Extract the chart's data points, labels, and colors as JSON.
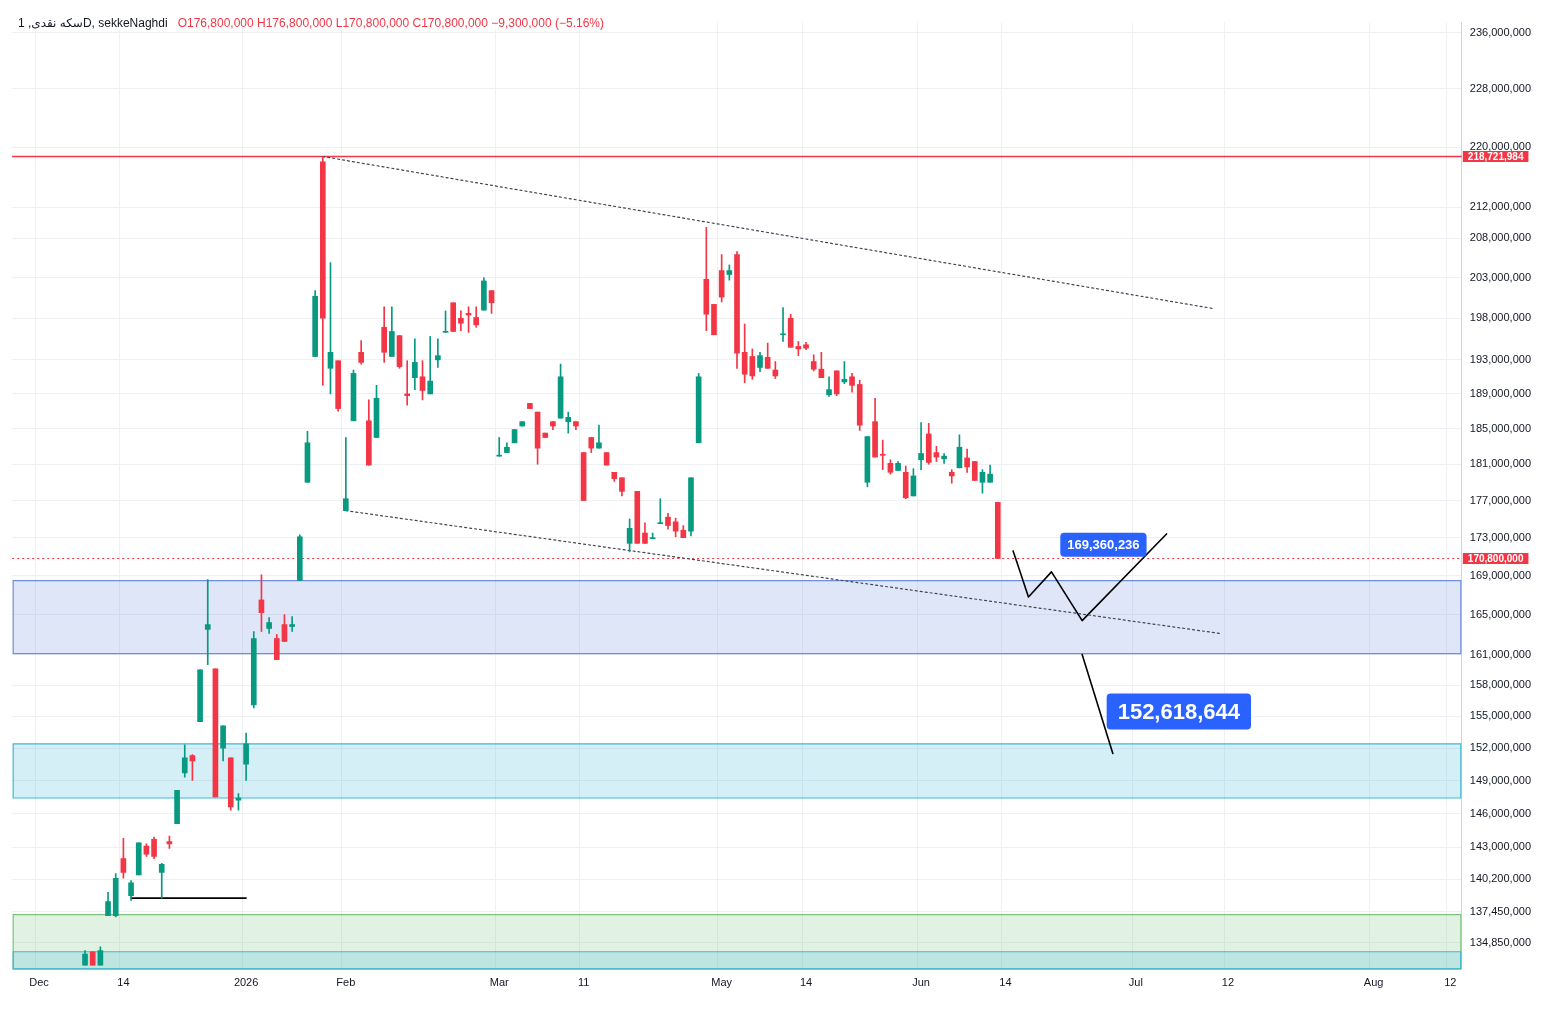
{
  "chart_data": {
    "type": "candlestick",
    "title": "سکه نقدی, 1D, sekkeNaghdi",
    "annotations": [
      "O176,800,000 H176,800,000 L170,800,000 C170,800,000 −9,300,000 (−5.16%)",
      "169,360,236",
      {
        "text": "152,618,644",
        "y": 152618644
      }
    ],
    "categories": [
      null,
      null,
      null,
      "Dec",
      null,
      null,
      null,
      null,
      null,
      null,
      null,
      null,
      null,
      null,
      "14",
      null,
      null,
      null,
      null,
      null,
      null,
      null,
      null,
      null,
      null,
      null,
      null,
      null,
      null,
      null,
      "2026",
      null,
      null,
      null,
      null,
      null,
      null,
      null,
      null,
      null,
      null,
      null,
      null,
      "Feb",
      null,
      null,
      null,
      null,
      null,
      null,
      null,
      null,
      null,
      null,
      null,
      null,
      null,
      null,
      null,
      null,
      null,
      null,
      null,
      "Mar",
      null,
      null,
      null,
      null,
      null,
      null,
      null,
      null,
      null,
      null,
      "11",
      null,
      null,
      null,
      null,
      null,
      null,
      null,
      null,
      null,
      null,
      null,
      null,
      null,
      null,
      null,
      null,
      null,
      "May",
      null,
      null,
      null,
      null,
      null,
      null,
      null,
      null,
      null,
      null,
      "14",
      null,
      null,
      null,
      null,
      null,
      null,
      null,
      null,
      null,
      null,
      null,
      null,
      null,
      null,
      "Jun",
      null,
      null,
      null,
      null,
      null,
      null,
      null,
      null,
      null,
      null,
      "14",
      null,
      null,
      null,
      null,
      null,
      null,
      null,
      null,
      null,
      null,
      null,
      null,
      null,
      null,
      null,
      null,
      "Jul",
      null,
      null,
      null,
      null,
      null,
      null,
      null,
      null,
      null,
      null,
      null,
      "12",
      null,
      null,
      null,
      null,
      null,
      null,
      null,
      null,
      null,
      null,
      null,
      null,
      null,
      null,
      null,
      null,
      null,
      null,
      "Aug",
      null,
      null,
      null,
      null,
      null,
      null,
      null,
      null,
      null,
      "12",
      null
    ],
    "ohlc": [
      null,
      null,
      null,
      null,
      null,
      null,
      null,
      null,
      null,
      [
        133000000,
        134200000,
        133000000,
        133900000
      ],
      [
        134100000,
        134100000,
        133000000,
        133000000
      ],
      [
        133000000,
        134500000,
        133000000,
        134200000
      ],
      [
        137100000,
        139100000,
        137100000,
        138300000
      ],
      [
        137100000,
        140700000,
        137000000,
        140300000
      ],
      [
        142000000,
        143800000,
        140300000,
        140800000
      ],
      [
        138800000,
        140100000,
        138400000,
        139900000
      ],
      [
        140600000,
        143400000,
        140600000,
        143400000
      ],
      [
        143100000,
        143300000,
        142200000,
        142400000
      ],
      [
        143700000,
        143900000,
        142000000,
        142200000
      ],
      [
        140800000,
        141600000,
        138600000,
        141500000
      ],
      [
        143500000,
        144000000,
        142900000,
        143300000
      ],
      [
        145100000,
        148100000,
        145100000,
        148100000
      ],
      [
        149700000,
        152300000,
        149300000,
        151100000
      ],
      [
        151300000,
        151400000,
        149000000,
        150800000
      ],
      [
        154500000,
        159500000,
        154500000,
        159500000
      ],
      [
        163500000,
        168600000,
        160000000,
        164000000
      ],
      [
        159600000,
        159600000,
        147500000,
        147500000
      ],
      [
        152000000,
        154100000,
        150800000,
        154100000
      ],
      [
        151100000,
        151100000,
        146300000,
        146600000
      ],
      [
        147200000,
        147800000,
        146300000,
        147400000
      ],
      [
        150500000,
        153400000,
        149000000,
        152400000
      ],
      [
        156100000,
        163300000,
        155800000,
        162600000
      ],
      [
        166500000,
        169100000,
        163300000,
        165200000
      ],
      [
        163600000,
        164700000,
        163100000,
        164200000
      ],
      [
        162600000,
        163000000,
        160500000,
        160500000
      ],
      [
        164000000,
        165000000,
        162300000,
        162300000
      ],
      [
        163800000,
        164800000,
        163300000,
        164000000
      ],
      [
        168500000,
        173300000,
        168500000,
        173100000
      ],
      [
        179000000,
        184700000,
        179000000,
        183400000
      ],
      [
        193400000,
        201400000,
        193400000,
        200700000
      ],
      [
        218000000,
        218721984,
        190000000,
        198000000
      ],
      [
        192000000,
        204900000,
        189000000,
        193900000
      ],
      [
        192900000,
        192900000,
        187000000,
        187300000
      ],
      [
        175900000,
        184000000,
        175900000,
        177200000
      ],
      [
        185900000,
        191800000,
        185900000,
        191400000
      ],
      [
        193900000,
        195300000,
        192500000,
        192700000
      ],
      [
        185900000,
        188300000,
        180900000,
        180900000
      ],
      [
        184000000,
        190000000,
        184000000,
        188500000
      ],
      [
        196900000,
        199400000,
        192700000,
        193900000
      ],
      [
        193400000,
        199400000,
        193400000,
        196400000
      ],
      [
        195900000,
        195900000,
        192000000,
        192200000
      ],
      [
        189000000,
        192900000,
        187700000,
        188800000
      ],
      [
        190900000,
        195500000,
        189500000,
        192700000
      ],
      [
        191000000,
        192900000,
        188300000,
        189400000
      ],
      [
        189000000,
        195800000,
        189000000,
        190500000
      ],
      [
        193000000,
        195500000,
        192100000,
        193500000
      ],
      [
        196300000,
        198900000,
        196300000,
        196400000
      ],
      [
        199900000,
        199900000,
        196400000,
        196400000
      ],
      [
        198000000,
        198900000,
        196500000,
        197400000
      ],
      [
        198600000,
        199400000,
        196300000,
        198400000
      ],
      [
        198100000,
        199400000,
        196900000,
        197200000
      ],
      [
        199000000,
        203000000,
        199000000,
        202600000
      ],
      [
        201400000,
        201400000,
        198600000,
        199900000
      ],
      [
        181900000,
        184000000,
        181900000,
        182000000
      ],
      [
        182300000,
        183400000,
        182300000,
        182900000
      ],
      [
        183400000,
        184900000,
        183400000,
        184900000
      ],
      [
        185300000,
        185800000,
        185300000,
        185800000
      ],
      [
        187900000,
        187900000,
        187300000,
        187300000
      ],
      [
        186900000,
        186900000,
        181000000,
        182800000
      ],
      [
        184500000,
        184500000,
        184000000,
        184000000
      ],
      [
        185800000,
        185800000,
        184900000,
        185300000
      ],
      [
        186200000,
        192500000,
        186200000,
        191000000
      ],
      [
        185800000,
        186900000,
        184500000,
        186300000
      ],
      [
        185800000,
        185800000,
        184900000,
        185300000
      ],
      [
        182300000,
        182300000,
        177000000,
        177000000
      ],
      [
        184000000,
        184000000,
        182300000,
        182800000
      ],
      [
        182800000,
        185400000,
        182800000,
        183400000
      ],
      [
        182300000,
        182300000,
        180900000,
        180900000
      ],
      [
        180100000,
        180100000,
        179100000,
        179400000
      ],
      [
        179500000,
        179500000,
        177500000,
        178000000
      ],
      [
        172400000,
        175000000,
        171500000,
        174000000
      ],
      [
        178000000,
        178000000,
        172400000,
        172400000
      ],
      [
        173500000,
        174600000,
        172400000,
        172400000
      ],
      [
        172900000,
        173500000,
        172900000,
        173000000
      ],
      [
        174500000,
        177200000,
        174500000,
        174600000
      ],
      [
        175200000,
        175600000,
        173900000,
        174300000
      ],
      [
        174700000,
        175100000,
        173100000,
        173700000
      ],
      [
        173800000,
        174300000,
        173000000,
        173000000
      ],
      [
        173700000,
        179500000,
        173200000,
        179500000
      ],
      [
        183400000,
        191400000,
        183400000,
        191000000
      ],
      [
        202800000,
        209400000,
        196500000,
        198500000
      ],
      [
        199700000,
        199700000,
        196000000,
        196000000
      ],
      [
        203900000,
        205900000,
        200000000,
        200600000
      ],
      [
        203400000,
        204600000,
        202700000,
        203900000
      ],
      [
        205900000,
        206300000,
        192000000,
        193800000
      ],
      [
        193900000,
        197300000,
        190300000,
        191300000
      ],
      [
        193400000,
        194300000,
        190700000,
        191100000
      ],
      [
        192100000,
        193900000,
        191600000,
        193500000
      ],
      [
        193300000,
        195000000,
        192000000,
        192000000
      ],
      [
        191800000,
        192800000,
        190800000,
        191100000
      ],
      [
        196000000,
        199300000,
        195200000,
        196100000
      ],
      [
        198000000,
        198500000,
        194500000,
        194500000
      ],
      [
        194600000,
        195200000,
        193500000,
        194300000
      ],
      [
        194800000,
        195100000,
        194200000,
        194400000
      ],
      [
        192800000,
        193600000,
        191700000,
        191900000
      ],
      [
        191900000,
        193900000,
        190900000,
        190900000
      ],
      [
        188900000,
        191000000,
        188700000,
        189500000
      ],
      [
        191700000,
        191700000,
        188800000,
        189000000
      ],
      [
        190400000,
        192800000,
        190200000,
        190700000
      ],
      [
        191000000,
        191400000,
        189200000,
        190000000
      ],
      [
        190100000,
        190600000,
        184800000,
        185400000
      ],
      [
        179000000,
        184100000,
        178500000,
        184100000
      ],
      [
        185800000,
        188500000,
        181800000,
        181800000
      ],
      [
        182100000,
        183700000,
        180400000,
        182000000
      ],
      [
        181100000,
        181500000,
        179900000,
        180100000
      ],
      [
        180300000,
        181300000,
        180300000,
        181100000
      ],
      [
        180100000,
        180800000,
        177200000,
        177300000
      ],
      [
        177500000,
        180500000,
        177500000,
        179700000
      ],
      [
        181500000,
        185700000,
        180400000,
        182200000
      ],
      [
        184400000,
        185600000,
        181000000,
        181200000
      ],
      [
        182300000,
        183000000,
        181300000,
        181800000
      ],
      [
        181600000,
        182200000,
        181100000,
        181900000
      ],
      [
        180100000,
        180400000,
        178900000,
        179700000
      ],
      [
        180600000,
        184300000,
        180600000,
        182900000
      ],
      [
        181700000,
        182700000,
        180100000,
        180700000
      ],
      [
        181300000,
        181300000,
        179200000,
        179200000
      ],
      [
        179000000,
        180400000,
        177800000,
        180100000
      ],
      [
        179000000,
        180900000,
        179000000,
        179900000
      ],
      [
        176800000,
        176800000,
        170800000,
        170800000
      ],
      null,
      null,
      null,
      null,
      null,
      null,
      null,
      null,
      null,
      null,
      null,
      null,
      null,
      null,
      null,
      null,
      null,
      null,
      null,
      null,
      null,
      null,
      null,
      null,
      null,
      null,
      null,
      null,
      null,
      null,
      null,
      null,
      null,
      null,
      null,
      null,
      null,
      null,
      null,
      null,
      null,
      null,
      null,
      null,
      null,
      null,
      null,
      null,
      null,
      null,
      null,
      null,
      null,
      null,
      null,
      null,
      null,
      null,
      null,
      null
    ],
    "series": [
      {
        "type": "line",
        "color": "#434651",
        "line_style": "dotted",
        "values": [
          null,
          null,
          null,
          null,
          null,
          null,
          null,
          null,
          null,
          null,
          null,
          null,
          null,
          null,
          null,
          null,
          null,
          null,
          null,
          null,
          null,
          null,
          null,
          null,
          null,
          null,
          null,
          null,
          null,
          null,
          null,
          null,
          null,
          null,
          null,
          null,
          null,
          null,
          null,
          null,
          218721984,
          null,
          null,
          null,
          null,
          null,
          null,
          null,
          null,
          null,
          null,
          null,
          null,
          null,
          null,
          null,
          null,
          null,
          null,
          null,
          null,
          null,
          null,
          null,
          null,
          null,
          null,
          null,
          null,
          null,
          null,
          null,
          null,
          null,
          null,
          null,
          null,
          null,
          null,
          null,
          null,
          null,
          null,
          null,
          null,
          null,
          null,
          null,
          null,
          null,
          null,
          null,
          null,
          null,
          null,
          null,
          null,
          null,
          null,
          null,
          null,
          null,
          null,
          null,
          null,
          null,
          null,
          null,
          null,
          null,
          null,
          null,
          null,
          null,
          null,
          null,
          null,
          null,
          null,
          null,
          null,
          null,
          null,
          null,
          null,
          null,
          null,
          null,
          null,
          null,
          null,
          null,
          null,
          null,
          null,
          null,
          null,
          null,
          null,
          null,
          null,
          null,
          null,
          null,
          null,
          null,
          null,
          null,
          null,
          null,
          null,
          null,
          null,
          null,
          null,
          null,
          199200000,
          null,
          null,
          null,
          null,
          null,
          null,
          null,
          null,
          null,
          null,
          null,
          null,
          null,
          null,
          null,
          null,
          null,
          null,
          null,
          null,
          null,
          null,
          null,
          null,
          null,
          null,
          null,
          null,
          null,
          null,
          null,
          null
        ]
      },
      {
        "type": "line",
        "color": "#434651",
        "line_style": "dotted",
        "values": [
          null,
          null,
          null,
          null,
          null,
          null,
          null,
          null,
          null,
          null,
          null,
          null,
          null,
          null,
          null,
          null,
          null,
          null,
          null,
          null,
          null,
          null,
          null,
          null,
          null,
          null,
          null,
          null,
          null,
          null,
          null,
          null,
          null,
          null,
          null,
          null,
          null,
          null,
          null,
          null,
          null,
          null,
          null,
          175900000,
          null,
          null,
          null,
          null,
          null,
          null,
          null,
          null,
          null,
          null,
          null,
          null,
          null,
          null,
          null,
          null,
          null,
          null,
          null,
          null,
          null,
          null,
          null,
          null,
          null,
          null,
          null,
          null,
          null,
          null,
          null,
          null,
          null,
          null,
          null,
          null,
          null,
          null,
          null,
          null,
          null,
          null,
          null,
          null,
          null,
          null,
          null,
          null,
          null,
          null,
          null,
          null,
          null,
          null,
          null,
          null,
          null,
          null,
          null,
          null,
          null,
          null,
          null,
          null,
          null,
          null,
          null,
          null,
          null,
          null,
          null,
          null,
          null,
          null,
          null,
          null,
          null,
          null,
          null,
          null,
          null,
          null,
          null,
          null,
          null,
          null,
          null,
          null,
          null,
          null,
          null,
          null,
          null,
          null,
          null,
          null,
          null,
          null,
          null,
          null,
          null,
          null,
          null,
          null,
          null,
          null,
          null,
          null,
          null,
          null,
          null,
          null,
          null,
          163100000,
          null,
          null,
          null,
          null,
          null,
          null,
          null,
          null,
          null,
          null,
          null,
          null,
          null,
          null,
          null,
          null,
          null,
          null,
          null,
          null,
          null,
          null,
          null,
          null,
          null,
          null,
          null,
          null,
          null,
          null,
          null
        ]
      },
      {
        "type": "line",
        "color": "#000000",
        "line_style": "solid",
        "values": [
          null,
          null,
          null,
          null,
          null,
          null,
          null,
          null,
          null,
          null,
          null,
          null,
          null,
          null,
          null,
          138600000,
          null,
          null,
          null,
          null,
          null,
          null,
          null,
          null,
          null,
          null,
          null,
          null,
          null,
          null,
          138600000,
          null,
          null,
          null,
          null,
          null,
          null,
          null,
          null,
          null,
          null,
          null,
          null,
          null,
          null,
          null,
          null,
          null,
          null,
          null,
          null,
          null,
          null,
          null,
          null,
          null,
          null,
          null,
          null,
          null,
          null,
          null,
          null,
          null,
          null,
          null,
          null,
          null,
          null,
          null,
          null,
          null,
          null,
          null,
          null,
          null,
          null,
          null,
          null,
          null,
          null,
          null,
          null,
          null,
          null,
          null,
          null,
          null,
          null,
          null,
          null,
          null,
          null,
          null,
          null,
          null,
          null,
          null,
          null,
          null,
          null,
          null,
          null,
          null,
          null,
          null,
          null,
          null,
          null,
          null,
          null,
          null,
          null,
          null,
          null,
          null,
          null,
          null,
          null,
          null,
          null,
          null,
          null,
          null,
          null,
          null,
          null,
          null,
          null,
          null,
          null,
          null,
          null,
          null,
          null,
          null,
          null,
          null,
          null,
          null,
          null,
          null,
          null,
          null,
          null,
          null,
          null,
          null,
          null,
          null,
          null,
          null,
          null,
          null,
          null,
          null,
          null,
          null,
          null,
          null,
          null,
          null,
          null,
          null,
          null,
          null,
          null,
          null,
          null,
          null,
          null,
          null,
          null,
          null,
          null,
          null,
          null,
          null,
          null,
          null,
          null,
          null,
          null,
          null,
          null,
          null,
          null,
          null,
          null
        ]
      },
      {
        "type": "line",
        "color": "#000000",
        "line_style": "solid",
        "values": [
          null,
          null,
          null,
          null,
          null,
          null,
          null,
          null,
          null,
          null,
          null,
          null,
          null,
          null,
          null,
          null,
          null,
          null,
          null,
          null,
          null,
          null,
          null,
          null,
          null,
          null,
          null,
          null,
          null,
          null,
          null,
          null,
          null,
          null,
          null,
          null,
          null,
          null,
          null,
          null,
          null,
          null,
          null,
          null,
          null,
          null,
          null,
          null,
          null,
          null,
          null,
          null,
          null,
          null,
          null,
          null,
          null,
          null,
          null,
          null,
          null,
          null,
          null,
          null,
          null,
          null,
          null,
          null,
          null,
          null,
          null,
          null,
          null,
          null,
          null,
          null,
          null,
          null,
          null,
          null,
          null,
          null,
          null,
          null,
          null,
          null,
          null,
          null,
          null,
          null,
          null,
          null,
          null,
          null,
          null,
          null,
          null,
          null,
          null,
          null,
          null,
          null,
          null,
          null,
          null,
          null,
          null,
          null,
          null,
          null,
          null,
          null,
          null,
          null,
          null,
          null,
          null,
          null,
          null,
          null,
          null,
          null,
          null,
          null,
          null,
          null,
          null,
          null,
          null,
          null,
          171600000,
          null,
          166800000,
          null,
          null,
          169400000,
          null,
          null,
          null,
          164400000,
          null,
          null,
          null,
          null,
          null,
          null,
          null,
          null,
          null,
          null,
          173400000,
          null,
          null,
          null,
          null,
          null,
          null,
          null,
          null,
          null,
          null,
          null,
          null,
          null,
          null,
          null,
          null,
          null,
          null,
          null,
          null,
          null,
          null,
          null,
          null,
          null,
          null,
          null,
          null,
          null,
          null,
          null,
          null,
          null,
          null,
          null,
          null,
          null,
          null
        ]
      },
      {
        "type": "line",
        "color": "#000000",
        "line_style": "solid",
        "values": [
          null,
          null,
          null,
          null,
          null,
          null,
          null,
          null,
          null,
          null,
          null,
          null,
          null,
          null,
          null,
          null,
          null,
          null,
          null,
          null,
          null,
          null,
          null,
          null,
          null,
          null,
          null,
          null,
          null,
          null,
          null,
          null,
          null,
          null,
          null,
          null,
          null,
          null,
          null,
          null,
          null,
          null,
          null,
          null,
          null,
          null,
          null,
          null,
          null,
          null,
          null,
          null,
          null,
          null,
          null,
          null,
          null,
          null,
          null,
          null,
          null,
          null,
          null,
          null,
          null,
          null,
          null,
          null,
          null,
          null,
          null,
          null,
          null,
          null,
          null,
          null,
          null,
          null,
          null,
          null,
          null,
          null,
          null,
          null,
          null,
          null,
          null,
          null,
          null,
          null,
          null,
          null,
          null,
          null,
          null,
          null,
          null,
          null,
          null,
          null,
          null,
          null,
          null,
          null,
          null,
          null,
          null,
          null,
          null,
          null,
          null,
          null,
          null,
          null,
          null,
          null,
          null,
          null,
          null,
          null,
          null,
          null,
          null,
          null,
          null,
          null,
          null,
          null,
          null,
          null,
          null,
          null,
          null,
          null,
          null,
          null,
          null,
          null,
          null,
          161000000,
          null,
          null,
          null,
          151500000,
          null,
          null,
          null,
          null,
          null,
          null,
          null,
          null,
          null,
          null,
          null,
          null,
          null,
          null,
          null,
          null,
          null,
          null,
          null,
          null,
          null,
          null,
          null,
          null,
          null,
          null,
          null,
          null,
          null,
          null,
          null,
          null,
          null,
          null,
          null,
          null,
          null,
          null,
          null,
          null,
          null,
          null,
          null,
          null,
          null
        ]
      }
    ],
    "ylim": [
      132700000,
      237500000
    ],
    "yticks": [
      {
        "value": 134850000,
        "label": "134,850,000"
      },
      {
        "value": 137450000,
        "label": "137,450,000"
      },
      {
        "value": 140200000,
        "label": "140,200,000"
      },
      {
        "value": 143000000,
        "label": "143,000,000"
      },
      {
        "value": 146000000,
        "label": "146,000,000"
      },
      {
        "value": 149000000,
        "label": "149,000,000"
      },
      {
        "value": 152000000,
        "label": "152,000,000"
      },
      {
        "value": 155000000,
        "label": "155,000,000"
      },
      {
        "value": 158000000,
        "label": "158,000,000"
      },
      {
        "value": 161000000,
        "label": "161,000,000"
      },
      {
        "value": 165000000,
        "label": "165,000,000"
      },
      {
        "value": 169000000,
        "label": "169,000,000"
      },
      {
        "value": 173000000,
        "label": "173,000,000"
      },
      {
        "value": 177000000,
        "label": "177,000,000"
      },
      {
        "value": 181000000,
        "label": "181,000,000"
      },
      {
        "value": 185000000,
        "label": "185,000,000"
      },
      {
        "value": 189000000,
        "label": "189,000,000"
      },
      {
        "value": 193000000,
        "label": "193,000,000"
      },
      {
        "value": 198000000,
        "label": "198,000,000"
      },
      {
        "value": 203000000,
        "label": "203,000,000"
      },
      {
        "value": 208000000,
        "label": "208,000,000"
      },
      {
        "value": 212000000,
        "label": "212,000,000"
      },
      {
        "value": 220000000,
        "label": "220,000,000"
      },
      {
        "value": 228000000,
        "label": "228,000,000"
      },
      {
        "value": 236000000,
        "label": "236,000,000"
      }
    ],
    "log": "y",
    "grid": true,
    "legend": false,
    "ref_lines": [
      {
        "axis": "y",
        "value": 218721984,
        "label": "218,721,984",
        "color": "#f23645",
        "line_style": "solid"
      },
      {
        "axis": "y",
        "value": 170800000,
        "label": "170,800,000",
        "color": "#f23645",
        "line_style": "dotted"
      }
    ],
    "bands": [
      {
        "axis": "y",
        "from": 161100000,
        "to": 168500000,
        "color": "#6f8fdc"
      },
      {
        "axis": "y",
        "from": 147400000,
        "to": 152400000,
        "color": "#3fb8d8"
      },
      {
        "axis": "y",
        "from": 132700000,
        "to": 137200000,
        "color": "#7cc47c"
      },
      {
        "axis": "y",
        "from": 132700000,
        "to": 134100000,
        "color": "#3fb8d8"
      }
    ]
  }
}
